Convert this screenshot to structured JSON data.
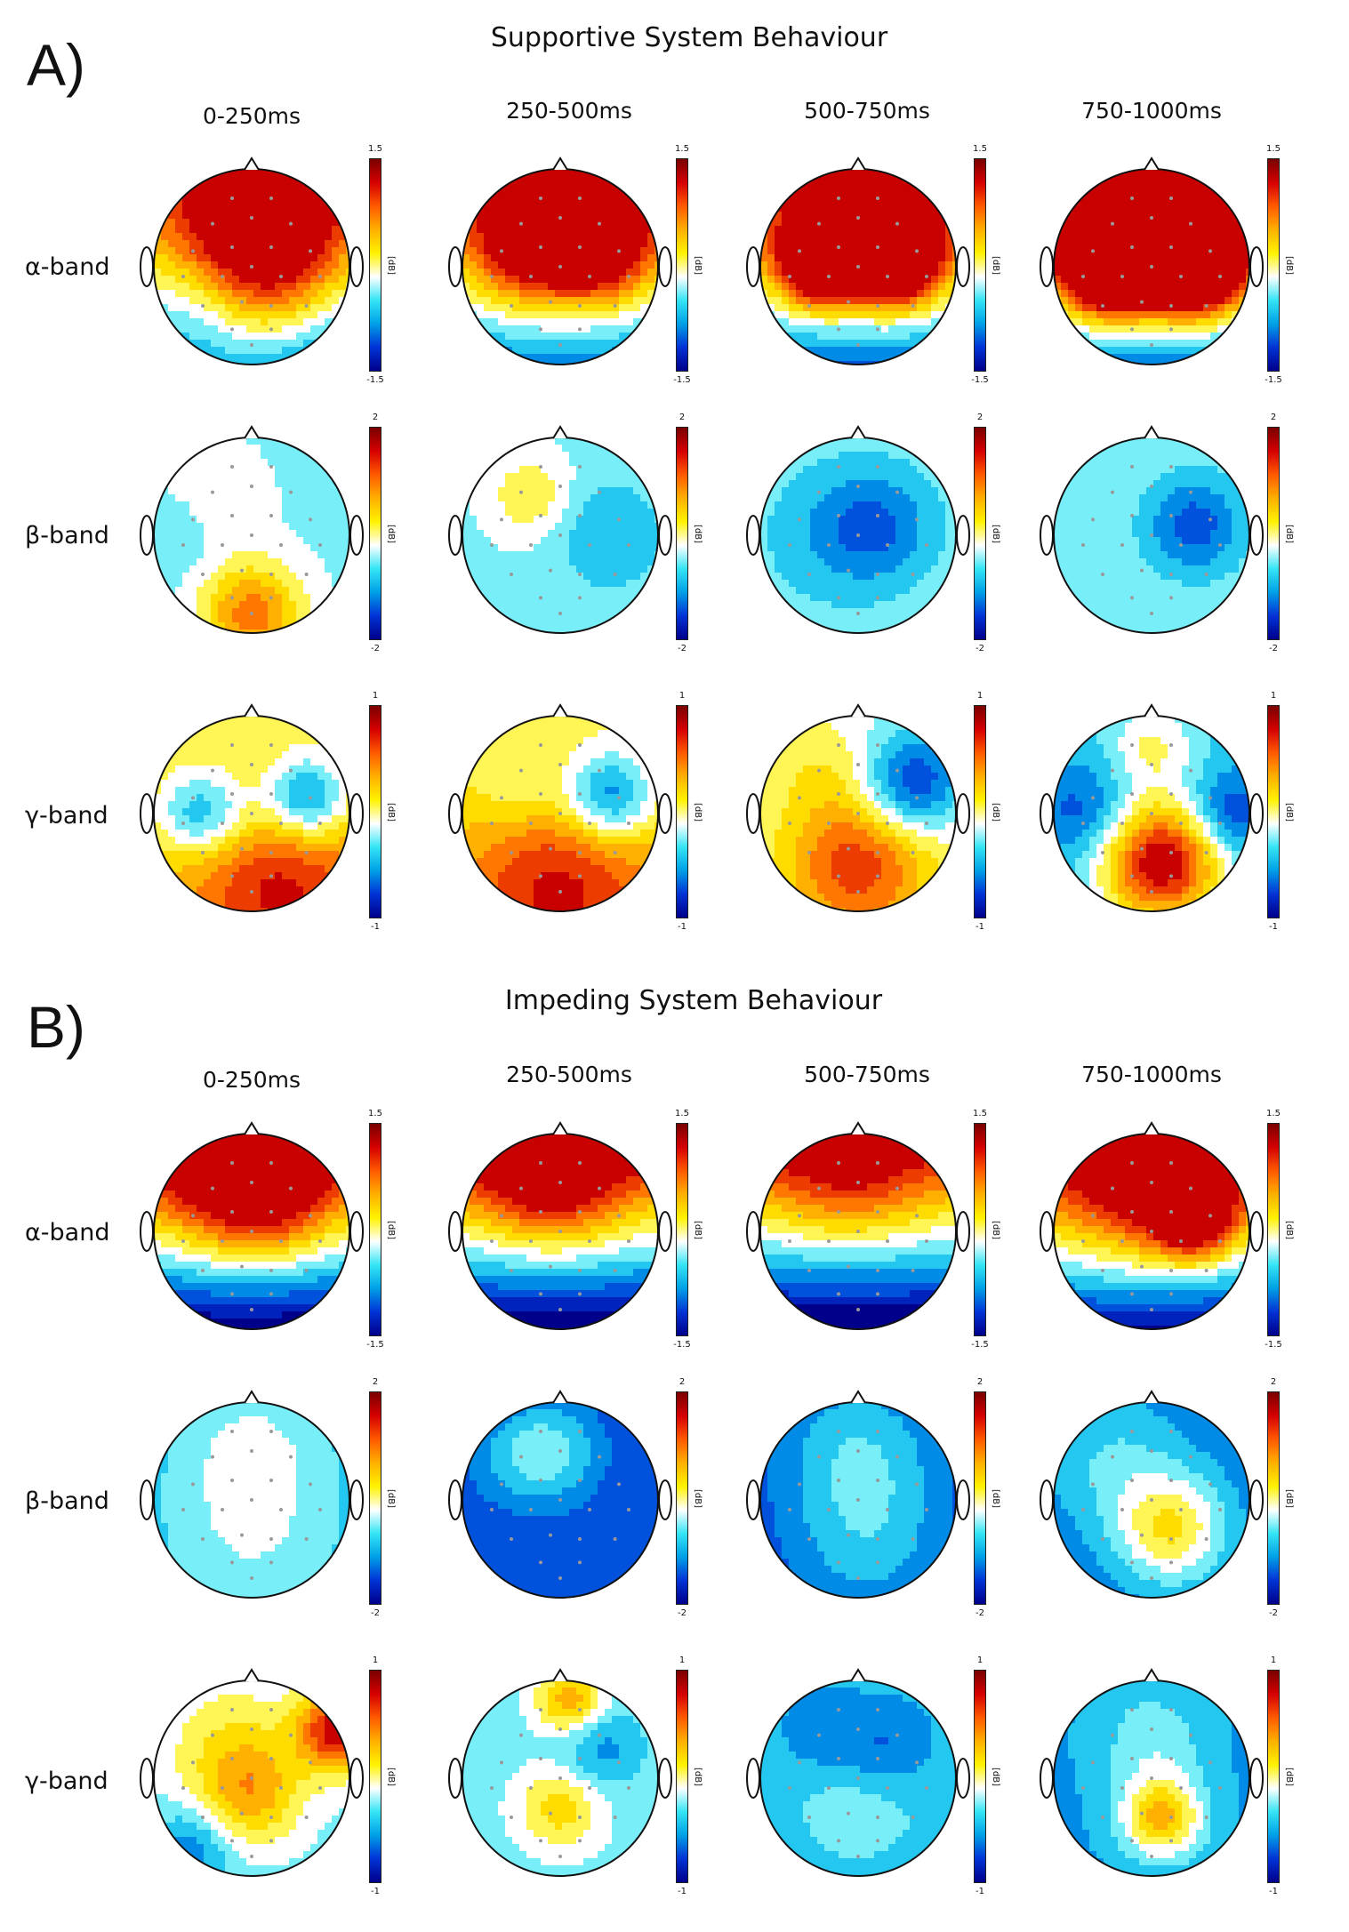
{
  "panels": [
    {
      "letter": "A)",
      "title": "Supportive System Behaviour",
      "times": [
        "0-250ms",
        "250-500ms",
        "500-750ms",
        "750-1000ms"
      ],
      "rows": [
        {
          "band": "α-band",
          "max": "1.5",
          "min": "-1.5"
        },
        {
          "band": "β-band",
          "max": "2",
          "min": "-2"
        },
        {
          "band": "γ-band",
          "max": "1",
          "min": "-1"
        }
      ]
    },
    {
      "letter": "B)",
      "title": "Impeding System Behaviour",
      "times": [
        "0-250ms",
        "250-500ms",
        "500-750ms",
        "750-1000ms"
      ],
      "rows": [
        {
          "band": "α-band",
          "max": "1.5",
          "min": "-1.5"
        },
        {
          "band": "β-band",
          "max": "2",
          "min": "-2"
        },
        {
          "band": "γ-band",
          "max": "1",
          "min": "-1"
        }
      ]
    }
  ],
  "unit": "[dB]",
  "maps": [
    {
      "base": 0.05,
      "blobs": [
        [
          0.55,
          0.25,
          0.35,
          1.15
        ],
        [
          0.6,
          0.6,
          0.25,
          0.55
        ],
        [
          0.25,
          0.7,
          0.2,
          -0.25
        ],
        [
          0.8,
          0.8,
          0.3,
          -0.35
        ]
      ],
      "grad": -0.9
    },
    {
      "base": 0.1,
      "blobs": [
        [
          0.5,
          0.25,
          0.3,
          0.9
        ],
        [
          0.7,
          0.42,
          0.2,
          0.8
        ],
        [
          0.3,
          0.45,
          0.2,
          0.5
        ]
      ],
      "grad": -1.4
    },
    {
      "base": 0.15,
      "blobs": [
        [
          0.3,
          0.5,
          0.15,
          1.35
        ],
        [
          0.7,
          0.48,
          0.16,
          1.45
        ],
        [
          0.5,
          0.3,
          0.3,
          0.6
        ]
      ],
      "grad": -1.6
    },
    {
      "base": 0.25,
      "blobs": [
        [
          0.28,
          0.5,
          0.17,
          1.75
        ],
        [
          0.72,
          0.5,
          0.17,
          1.75
        ],
        [
          0.5,
          0.3,
          0.35,
          0.7
        ]
      ],
      "grad": -1.8
    },
    {
      "base": -0.12,
      "blobs": [
        [
          0.5,
          0.9,
          0.18,
          0.8
        ],
        [
          0.3,
          0.3,
          0.2,
          0.15
        ],
        [
          0.1,
          0.5,
          0.15,
          -0.15
        ]
      ],
      "grad": 0.0
    },
    {
      "base": -0.12,
      "blobs": [
        [
          0.35,
          0.3,
          0.15,
          0.35
        ],
        [
          0.75,
          0.5,
          0.2,
          -0.3
        ]
      ],
      "grad": 0.0
    },
    {
      "base": -0.15,
      "blobs": [
        [
          0.6,
          0.45,
          0.2,
          -0.4
        ],
        [
          0.35,
          0.5,
          0.25,
          -0.2
        ]
      ],
      "grad": 0.0
    },
    {
      "base": -0.12,
      "blobs": [
        [
          0.72,
          0.45,
          0.18,
          -0.55
        ]
      ],
      "grad": 0.0
    },
    {
      "base": 0.3,
      "blobs": [
        [
          0.65,
          0.85,
          0.3,
          0.55
        ],
        [
          0.2,
          0.5,
          0.15,
          -0.5
        ],
        [
          0.78,
          0.43,
          0.15,
          -0.85
        ],
        [
          0.35,
          0.5,
          0.15,
          -0.3
        ]
      ],
      "grad": 0.3
    },
    {
      "base": 0.25,
      "blobs": [
        [
          0.5,
          0.85,
          0.35,
          0.6
        ],
        [
          0.75,
          0.42,
          0.16,
          -0.85
        ],
        [
          0.3,
          0.4,
          0.15,
          -0.25
        ]
      ],
      "grad": 0.3
    },
    {
      "base": 0.05,
      "blobs": [
        [
          0.5,
          0.75,
          0.25,
          0.75
        ],
        [
          0.78,
          0.35,
          0.18,
          -0.8
        ],
        [
          0.3,
          0.25,
          0.2,
          0.2
        ]
      ],
      "grad": 0.2
    },
    {
      "base": -0.3,
      "blobs": [
        [
          0.55,
          0.75,
          0.22,
          1.4
        ],
        [
          0.9,
          0.5,
          0.15,
          -0.5
        ],
        [
          0.15,
          0.5,
          0.18,
          -0.4
        ],
        [
          0.5,
          0.15,
          0.15,
          0.4
        ]
      ],
      "grad": 0.0
    },
    {
      "base": 0.05,
      "blobs": [
        [
          0.45,
          0.25,
          0.3,
          0.8
        ],
        [
          0.6,
          0.4,
          0.2,
          0.3
        ]
      ],
      "grad": -2.4
    },
    {
      "base": 0.05,
      "blobs": [
        [
          0.45,
          0.25,
          0.25,
          0.75
        ]
      ],
      "grad": -2.4
    },
    {
      "base": 0.0,
      "blobs": [
        [
          0.45,
          0.25,
          0.25,
          0.4
        ]
      ],
      "grad": -2.4
    },
    {
      "base": 0.1,
      "blobs": [
        [
          0.45,
          0.3,
          0.3,
          0.7
        ],
        [
          0.72,
          0.45,
          0.15,
          1.0
        ]
      ],
      "grad": -2.2
    },
    {
      "base": -0.35,
      "blobs": [
        [
          0.5,
          0.25,
          0.25,
          0.3
        ],
        [
          0.5,
          0.7,
          0.3,
          0.25
        ]
      ],
      "grad": 0.0
    },
    {
      "base": -0.75,
      "blobs": [
        [
          0.45,
          0.25,
          0.2,
          0.5
        ],
        [
          0.25,
          0.3,
          0.2,
          0.2
        ]
      ],
      "grad": 0.0
    },
    {
      "base": -0.75,
      "blobs": [
        [
          0.5,
          0.25,
          0.3,
          0.45
        ],
        [
          0.55,
          0.75,
          0.3,
          0.35
        ]
      ],
      "grad": 0.0
    },
    {
      "base": -0.55,
      "blobs": [
        [
          0.6,
          0.65,
          0.2,
          0.8
        ],
        [
          0.3,
          0.3,
          0.25,
          0.3
        ]
      ],
      "grad": 0.0
    },
    {
      "base": -0.15,
      "blobs": [
        [
          0.4,
          0.35,
          0.25,
          0.4
        ],
        [
          0.5,
          0.6,
          0.18,
          0.5
        ],
        [
          0.95,
          0.25,
          0.15,
          1.2
        ],
        [
          0.2,
          0.85,
          0.15,
          -0.4
        ]
      ],
      "grad": 0.0
    },
    {
      "base": -0.15,
      "blobs": [
        [
          0.5,
          0.65,
          0.15,
          0.5
        ],
        [
          0.55,
          0.1,
          0.12,
          0.7
        ],
        [
          0.7,
          0.35,
          0.15,
          -0.35
        ]
      ],
      "grad": 0.0
    },
    {
      "base": -0.4,
      "blobs": [
        [
          0.5,
          0.6,
          0.3,
          0.25
        ],
        [
          0.35,
          0.3,
          0.15,
          -0.25
        ],
        [
          0.65,
          0.35,
          0.15,
          -0.3
        ]
      ],
      "grad": 0.0
    },
    {
      "base": -0.45,
      "blobs": [
        [
          0.55,
          0.7,
          0.15,
          0.9
        ],
        [
          0.5,
          0.3,
          0.2,
          0.3
        ]
      ],
      "grad": 0.0
    }
  ]
}
